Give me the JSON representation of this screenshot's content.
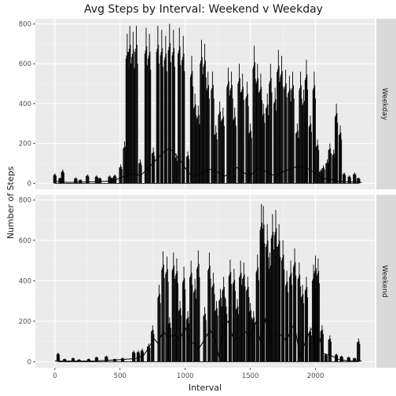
{
  "chart_data": {
    "type": "line",
    "title": "Avg Steps by Interval: Weekend v Weekday",
    "xlabel": "Interval",
    "ylabel": "Number of Steps",
    "xlim": [
      -150,
      2455
    ],
    "ylim": [
      -30,
      825
    ],
    "x_ticks": [
      0,
      500,
      1000,
      1500,
      2000
    ],
    "y_ticks": [
      0,
      200,
      400,
      600,
      800
    ],
    "grid": true,
    "legend": "none",
    "panels": [
      {
        "strip": "Weekday",
        "raw_color": "#000000",
        "bursts": [
          [
            0,
            50
          ],
          [
            40,
            30
          ],
          [
            60,
            70
          ],
          [
            160,
            30
          ],
          [
            195,
            20
          ],
          [
            250,
            45
          ],
          [
            320,
            40
          ],
          [
            345,
            30
          ],
          [
            420,
            40
          ],
          [
            440,
            30
          ],
          [
            460,
            45
          ],
          [
            505,
            95
          ],
          [
            535,
            210
          ],
          [
            555,
            750
          ],
          [
            575,
            790
          ],
          [
            600,
            760
          ],
          [
            625,
            790
          ],
          [
            655,
            120
          ],
          [
            700,
            780
          ],
          [
            725,
            750
          ],
          [
            755,
            180
          ],
          [
            790,
            790
          ],
          [
            820,
            770
          ],
          [
            850,
            740
          ],
          [
            880,
            800
          ],
          [
            910,
            770
          ],
          [
            930,
            150
          ],
          [
            955,
            780
          ],
          [
            985,
            740
          ],
          [
            1020,
            160
          ],
          [
            1050,
            640
          ],
          [
            1075,
            450
          ],
          [
            1100,
            390
          ],
          [
            1125,
            720
          ],
          [
            1150,
            700
          ],
          [
            1175,
            560
          ],
          [
            1210,
            560
          ],
          [
            1235,
            290
          ],
          [
            1265,
            410
          ],
          [
            1290,
            380
          ],
          [
            1330,
            580
          ],
          [
            1355,
            560
          ],
          [
            1380,
            380
          ],
          [
            1415,
            600
          ],
          [
            1440,
            550
          ],
          [
            1475,
            510
          ],
          [
            1500,
            300
          ],
          [
            1530,
            690
          ],
          [
            1555,
            600
          ],
          [
            1580,
            550
          ],
          [
            1600,
            400
          ],
          [
            1630,
            450
          ],
          [
            1655,
            600
          ],
          [
            1690,
            480
          ],
          [
            1715,
            670
          ],
          [
            1740,
            640
          ],
          [
            1770,
            570
          ],
          [
            1800,
            540
          ],
          [
            1825,
            560
          ],
          [
            1860,
            300
          ],
          [
            1885,
            560
          ],
          [
            1910,
            470
          ],
          [
            1930,
            620
          ],
          [
            1960,
            340
          ],
          [
            1990,
            560
          ],
          [
            2015,
            220
          ],
          [
            2040,
            70
          ],
          [
            2060,
            90
          ],
          [
            2090,
            120
          ],
          [
            2110,
            200
          ],
          [
            2140,
            170
          ],
          [
            2160,
            400
          ],
          [
            2190,
            290
          ],
          [
            2220,
            55
          ],
          [
            2260,
            40
          ],
          [
            2300,
            55
          ],
          [
            2330,
            30
          ]
        ],
        "mean": [
          [
            0,
            10
          ],
          [
            100,
            5
          ],
          [
            300,
            8
          ],
          [
            450,
            12
          ],
          [
            510,
            30
          ],
          [
            560,
            45
          ],
          [
            610,
            45
          ],
          [
            660,
            40
          ],
          [
            720,
            80
          ],
          [
            780,
            120
          ],
          [
            840,
            160
          ],
          [
            880,
            175
          ],
          [
            920,
            150
          ],
          [
            980,
            100
          ],
          [
            1020,
            55
          ],
          [
            1060,
            35
          ],
          [
            1120,
            50
          ],
          [
            1180,
            72
          ],
          [
            1240,
            60
          ],
          [
            1300,
            35
          ],
          [
            1360,
            60
          ],
          [
            1400,
            80
          ],
          [
            1440,
            55
          ],
          [
            1500,
            40
          ],
          [
            1560,
            75
          ],
          [
            1620,
            60
          ],
          [
            1680,
            40
          ],
          [
            1740,
            55
          ],
          [
            1800,
            70
          ],
          [
            1860,
            85
          ],
          [
            1900,
            80
          ],
          [
            1940,
            75
          ],
          [
            2000,
            50
          ],
          [
            2060,
            25
          ],
          [
            2120,
            20
          ],
          [
            2180,
            10
          ],
          [
            2240,
            8
          ],
          [
            2355,
            5
          ]
        ]
      },
      {
        "strip": "Weekend",
        "raw_color": "#000000",
        "bursts": [
          [
            25,
            45
          ],
          [
            75,
            15
          ],
          [
            140,
            20
          ],
          [
            185,
            12
          ],
          [
            260,
            15
          ],
          [
            320,
            25
          ],
          [
            395,
            30
          ],
          [
            460,
            15
          ],
          [
            520,
            20
          ],
          [
            605,
            55
          ],
          [
            640,
            55
          ],
          [
            670,
            65
          ],
          [
            720,
            90
          ],
          [
            750,
            180
          ],
          [
            800,
            380
          ],
          [
            830,
            545
          ],
          [
            860,
            520
          ],
          [
            880,
            220
          ],
          [
            910,
            540
          ],
          [
            935,
            510
          ],
          [
            960,
            300
          ],
          [
            990,
            470
          ],
          [
            1020,
            250
          ],
          [
            1045,
            500
          ],
          [
            1075,
            410
          ],
          [
            1100,
            550
          ],
          [
            1150,
            270
          ],
          [
            1185,
            540
          ],
          [
            1215,
            440
          ],
          [
            1240,
            300
          ],
          [
            1270,
            360
          ],
          [
            1295,
            420
          ],
          [
            1310,
            310
          ],
          [
            1345,
            505
          ],
          [
            1375,
            460
          ],
          [
            1400,
            310
          ],
          [
            1425,
            500
          ],
          [
            1450,
            490
          ],
          [
            1480,
            420
          ],
          [
            1500,
            290
          ],
          [
            1525,
            250
          ],
          [
            1555,
            530
          ],
          [
            1585,
            780
          ],
          [
            1600,
            770
          ],
          [
            1630,
            680
          ],
          [
            1650,
            540
          ],
          [
            1670,
            730
          ],
          [
            1695,
            750
          ],
          [
            1720,
            680
          ],
          [
            1750,
            600
          ],
          [
            1780,
            450
          ],
          [
            1810,
            500
          ],
          [
            1840,
            560
          ],
          [
            1875,
            490
          ],
          [
            1900,
            380
          ],
          [
            1930,
            420
          ],
          [
            1960,
            170
          ],
          [
            1985,
            480
          ],
          [
            2000,
            525
          ],
          [
            2020,
            510
          ],
          [
            2050,
            180
          ],
          [
            2080,
            40
          ],
          [
            2110,
            130
          ],
          [
            2160,
            40
          ],
          [
            2200,
            30
          ],
          [
            2255,
            25
          ],
          [
            2300,
            20
          ],
          [
            2330,
            115
          ]
        ],
        "mean": [
          [
            0,
            3
          ],
          [
            300,
            3
          ],
          [
            500,
            10
          ],
          [
            620,
            15
          ],
          [
            680,
            30
          ],
          [
            720,
            70
          ],
          [
            760,
            115
          ],
          [
            790,
            90
          ],
          [
            830,
            150
          ],
          [
            870,
            120
          ],
          [
            920,
            135
          ],
          [
            960,
            110
          ],
          [
            1000,
            170
          ],
          [
            1040,
            100
          ],
          [
            1080,
            85
          ],
          [
            1100,
            60
          ],
          [
            1150,
            110
          ],
          [
            1190,
            160
          ],
          [
            1230,
            110
          ],
          [
            1260,
            20
          ],
          [
            1290,
            175
          ],
          [
            1330,
            200
          ],
          [
            1370,
            110
          ],
          [
            1420,
            120
          ],
          [
            1460,
            150
          ],
          [
            1500,
            120
          ],
          [
            1540,
            195
          ],
          [
            1580,
            90
          ],
          [
            1620,
            220
          ],
          [
            1660,
            120
          ],
          [
            1700,
            140
          ],
          [
            1740,
            130
          ],
          [
            1780,
            100
          ],
          [
            1810,
            160
          ],
          [
            1840,
            185
          ],
          [
            1880,
            20
          ],
          [
            1920,
            95
          ],
          [
            1960,
            155
          ],
          [
            2000,
            180
          ],
          [
            2030,
            120
          ],
          [
            2060,
            40
          ],
          [
            2120,
            30
          ],
          [
            2180,
            10
          ],
          [
            2240,
            5
          ],
          [
            2355,
            3
          ]
        ]
      }
    ]
  }
}
